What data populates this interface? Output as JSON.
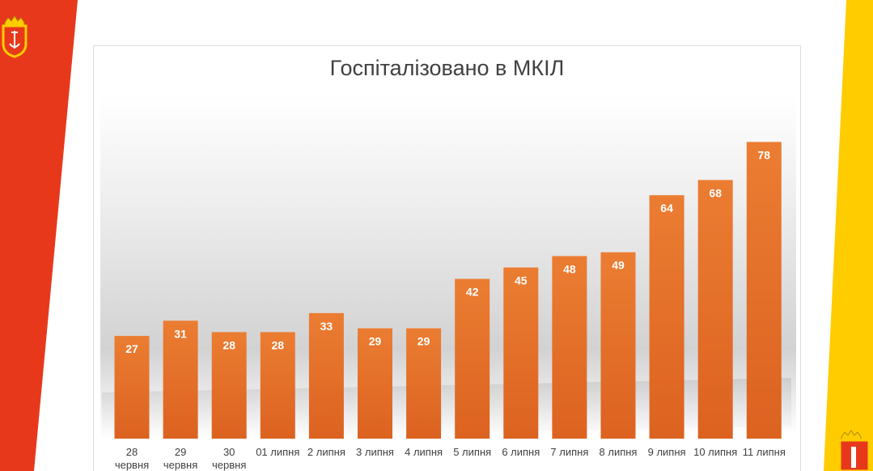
{
  "colors": {
    "bar": "#e8742a",
    "bar_dark": "#dc6220",
    "red_stripe": "#e8381c",
    "yellow_stripe": "#ffcc00",
    "title": "#404040"
  },
  "icons": {
    "top_left": "odesa-coat-of-arms-icon",
    "bottom_right": "odesa-coat-of-arms-icon"
  },
  "chart_data": {
    "type": "bar",
    "title": "Госпіталізовано в МКІЛ",
    "categories": [
      [
        "28",
        "червня"
      ],
      [
        "29",
        "червня"
      ],
      [
        "30",
        "червня"
      ],
      [
        "01 липня"
      ],
      [
        "2 липня"
      ],
      [
        "3 липня"
      ],
      [
        "4 липня"
      ],
      [
        "5 липня"
      ],
      [
        "6 липня"
      ],
      [
        "7 липня"
      ],
      [
        "8 липня"
      ],
      [
        "9 липня"
      ],
      [
        "10 липня"
      ],
      [
        "11 липня"
      ]
    ],
    "values": [
      27,
      31,
      28,
      28,
      33,
      29,
      29,
      42,
      45,
      48,
      49,
      64,
      68,
      78
    ],
    "ylim": [
      0,
      85
    ],
    "grid": false,
    "legend": "none",
    "data_labels": true
  }
}
